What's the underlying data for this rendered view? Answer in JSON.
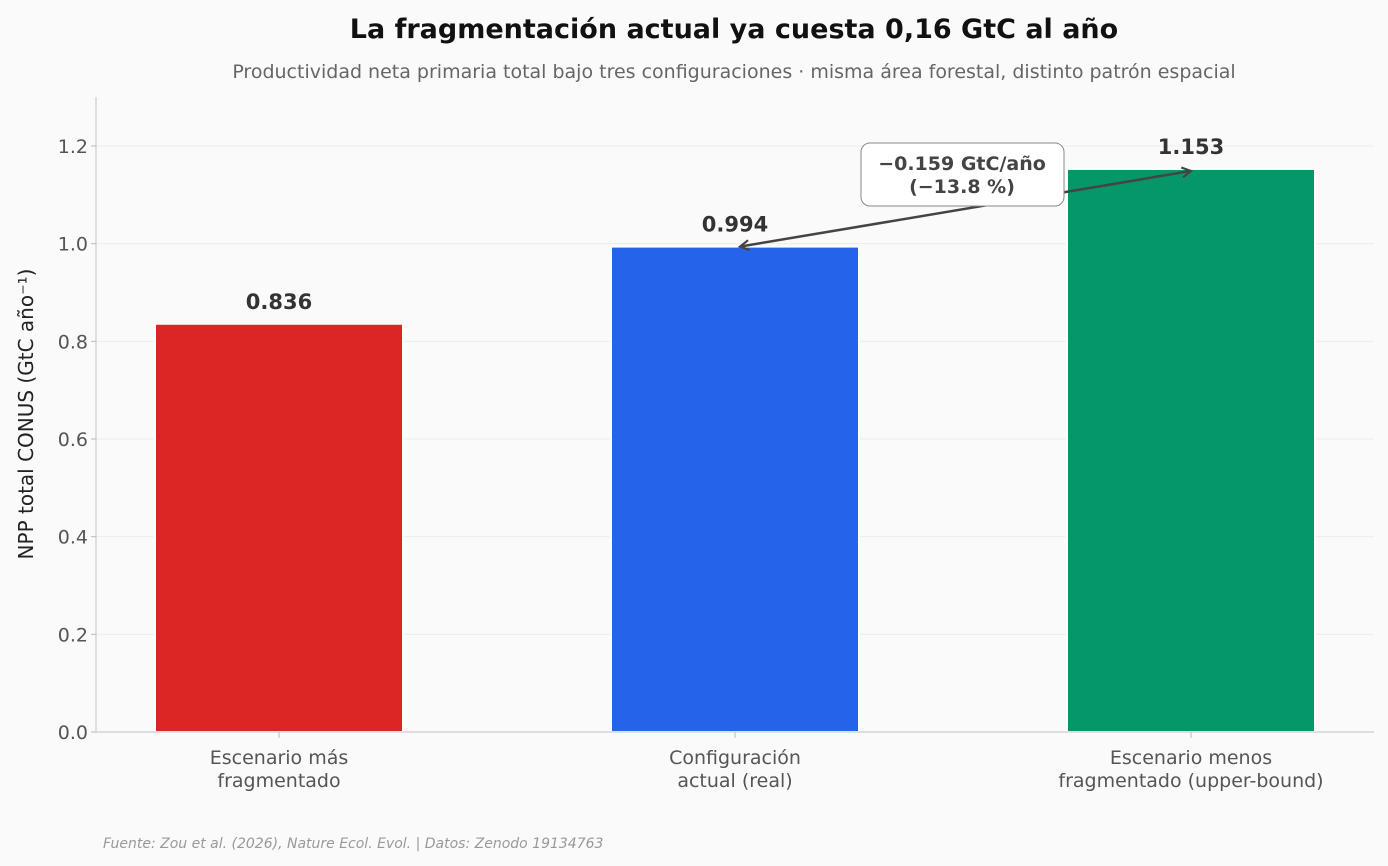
{
  "chart_data": {
    "type": "bar",
    "title": "La fragmentación actual ya cuesta 0,16 GtC al año",
    "subtitle": "Productividad neta primaria total bajo tres configuraciones · misma área forestal, distinto patrón espacial",
    "ylabel": "NPP total CONUS (GtC año⁻¹)",
    "xlabel": "",
    "ylim": [
      0,
      1.3
    ],
    "yticks": [
      "0.0",
      "0.2",
      "0.4",
      "0.6",
      "0.8",
      "1.0",
      "1.2"
    ],
    "grid": true,
    "categories": [
      [
        "Escenario más",
        "fragmentado"
      ],
      [
        "Configuración",
        "actual (real)"
      ],
      [
        "Escenario menos",
        "fragmentado (upper-bound)"
      ]
    ],
    "values": [
      0.836,
      0.994,
      1.153
    ],
    "value_labels": [
      "0.836",
      "0.994",
      "1.153"
    ],
    "colors": [
      "#dc2626",
      "#2563eb",
      "#059669"
    ],
    "annotation": {
      "lines": [
        "−0.159 GtC/año",
        "(−13.8 %)"
      ],
      "from_index": 2,
      "to_index": 1
    },
    "source": "Fuente: Zou et al. (2026), Nature Ecol. Evol. | Datos: Zenodo 19134763"
  }
}
